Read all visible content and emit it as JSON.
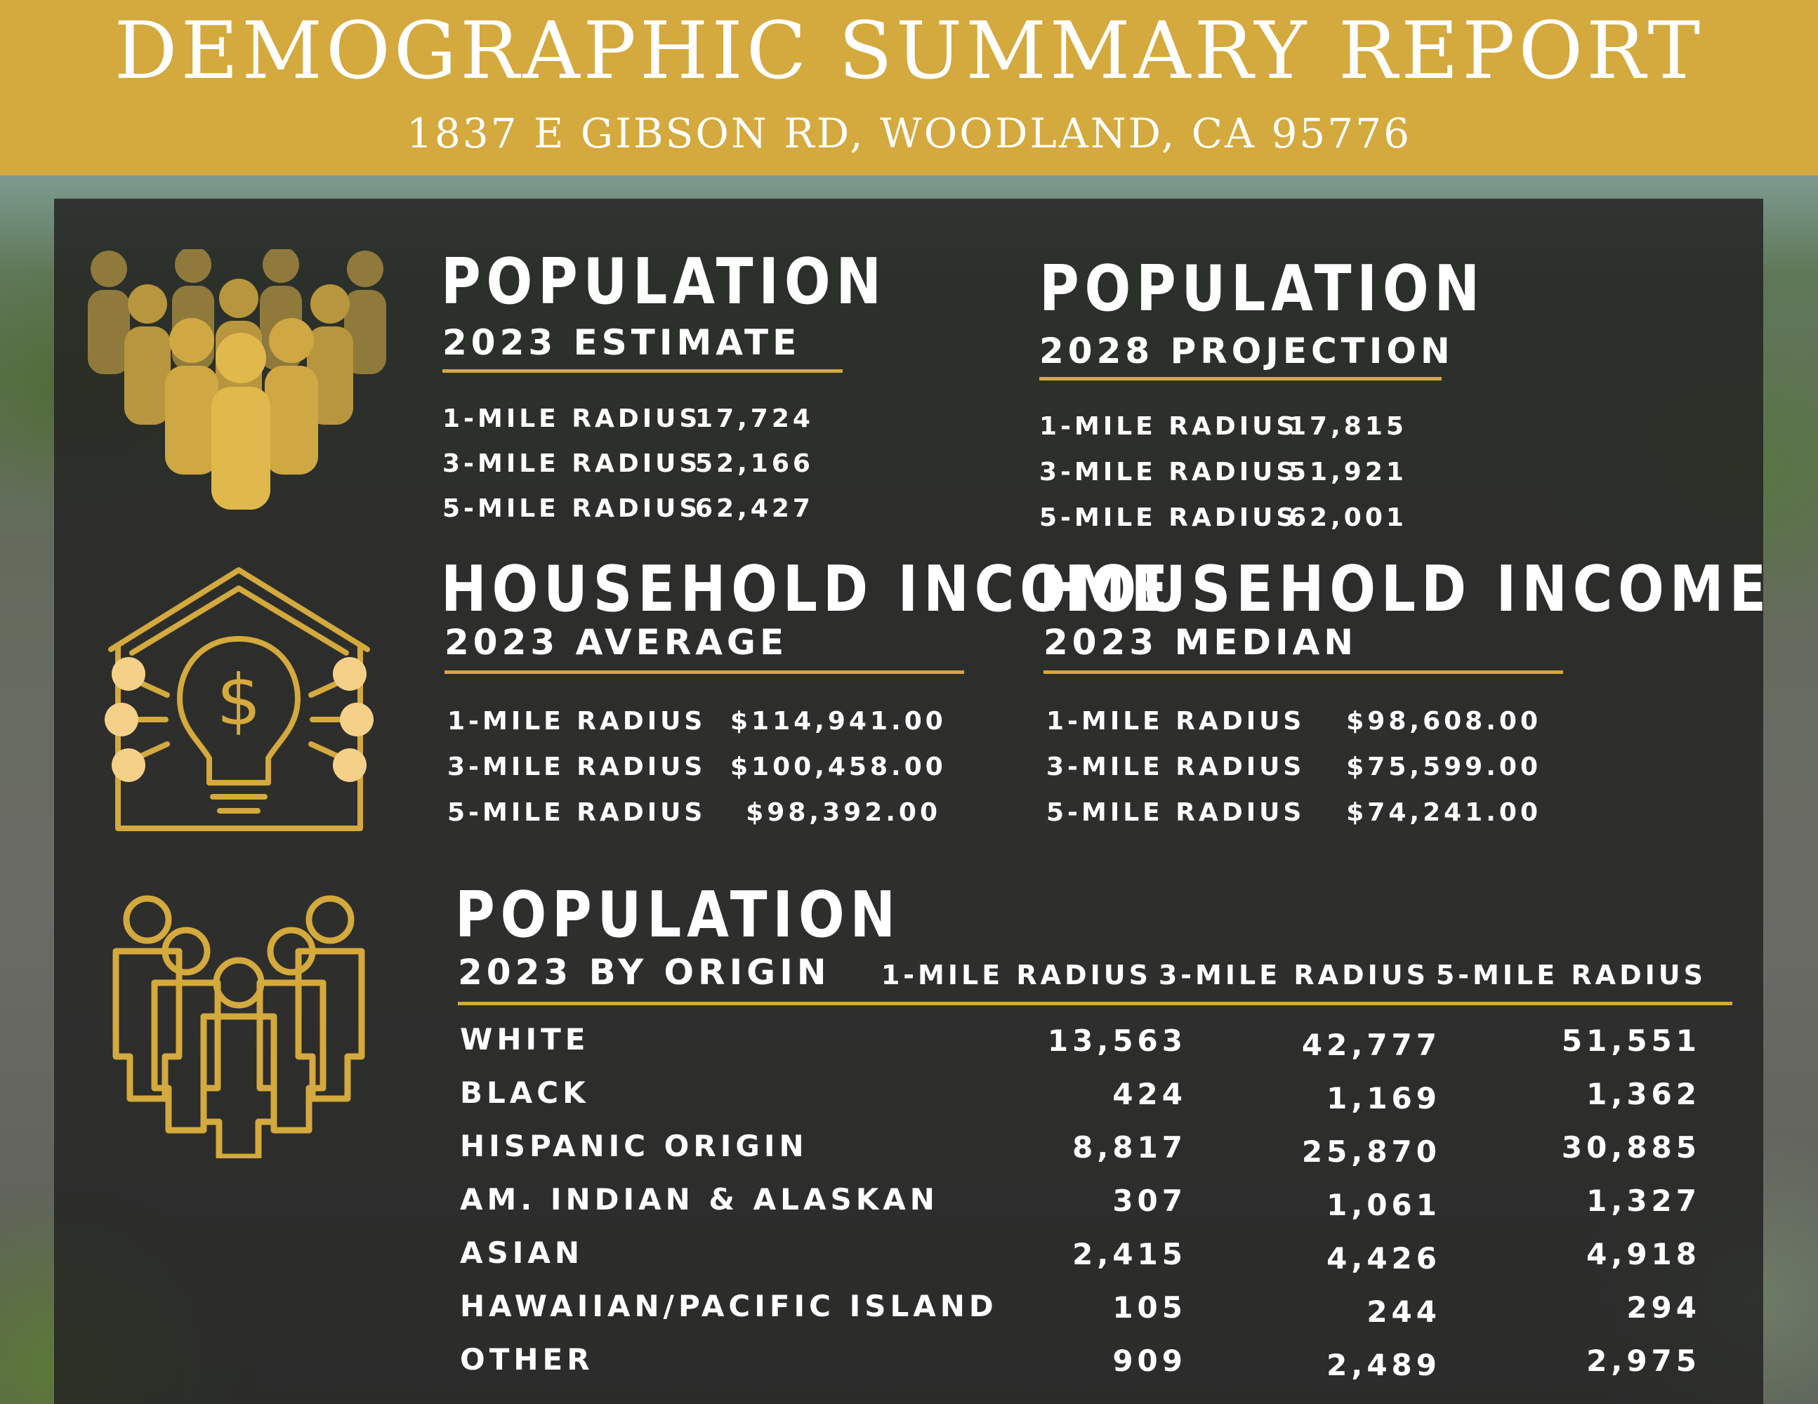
{
  "header": {
    "title": "DEMOGRAPHIC SUMMARY REPORT",
    "address": "1837 E GIBSON RD, WOODLAND, CA 95776"
  },
  "colors": {
    "gold": "#d4a93d",
    "panel": "#222222",
    "text": "#ffffff"
  },
  "icons": [
    "crowd-icon",
    "house-income-icon",
    "people-outline-icon"
  ],
  "pop_2023": {
    "title": "POPULATION",
    "subtitle": "2023 ESTIMATE",
    "rows": [
      {
        "label": "1-MILE RADIUS",
        "value": "17,724"
      },
      {
        "label": "3-MILE RADIUS",
        "value": "52,166"
      },
      {
        "label": "5-MILE RADIUS",
        "value": "62,427"
      }
    ]
  },
  "pop_2028": {
    "title": "POPULATION",
    "subtitle": "2028 PROJECTION",
    "rows": [
      {
        "label": "1-MILE RADIUS",
        "value": "17,815"
      },
      {
        "label": "3-MILE RADIUS",
        "value": "51,921"
      },
      {
        "label": "5-MILE RADIUS",
        "value": "62,001"
      }
    ]
  },
  "income_avg": {
    "title": "HOUSEHOLD INCOME",
    "subtitle": "2023 AVERAGE",
    "rows": [
      {
        "label": "1-MILE RADIUS",
        "value": "$114,941.00"
      },
      {
        "label": "3-MILE RADIUS",
        "value": "$100,458.00"
      },
      {
        "label": "5-MILE RADIUS",
        "value": "$98,392.00"
      }
    ]
  },
  "income_median": {
    "title": "HOUSEHOLD INCOME",
    "subtitle": "2023 MEDIAN",
    "rows": [
      {
        "label": "1-MILE RADIUS",
        "value": "$98,608.00"
      },
      {
        "label": "3-MILE RADIUS",
        "value": "$75,599.00"
      },
      {
        "label": "5-MILE RADIUS",
        "value": "$74,241.00"
      }
    ]
  },
  "origin": {
    "title": "POPULATION",
    "subtitle": "2023 BY ORIGIN",
    "columns": [
      "1-MILE RADIUS",
      "3-MILE RADIUS",
      "5-MILE RADIUS"
    ],
    "rows": [
      {
        "label": "WHITE",
        "values": [
          "13,563",
          "42,777",
          "51,551"
        ]
      },
      {
        "label": "BLACK",
        "values": [
          "424",
          "1,169",
          "1,362"
        ]
      },
      {
        "label": "HISPANIC ORIGIN",
        "values": [
          "8,817",
          "25,870",
          "30,885"
        ]
      },
      {
        "label": "AM. INDIAN & ALASKAN",
        "values": [
          "307",
          "1,061",
          "1,327"
        ]
      },
      {
        "label": "ASIAN",
        "values": [
          "2,415",
          "4,426",
          "4,918"
        ]
      },
      {
        "label": "HAWAIIAN/PACIFIC ISLAND",
        "values": [
          "105",
          "244",
          "294"
        ]
      },
      {
        "label": "OTHER",
        "values": [
          "909",
          "2,489",
          "2,975"
        ]
      }
    ]
  }
}
